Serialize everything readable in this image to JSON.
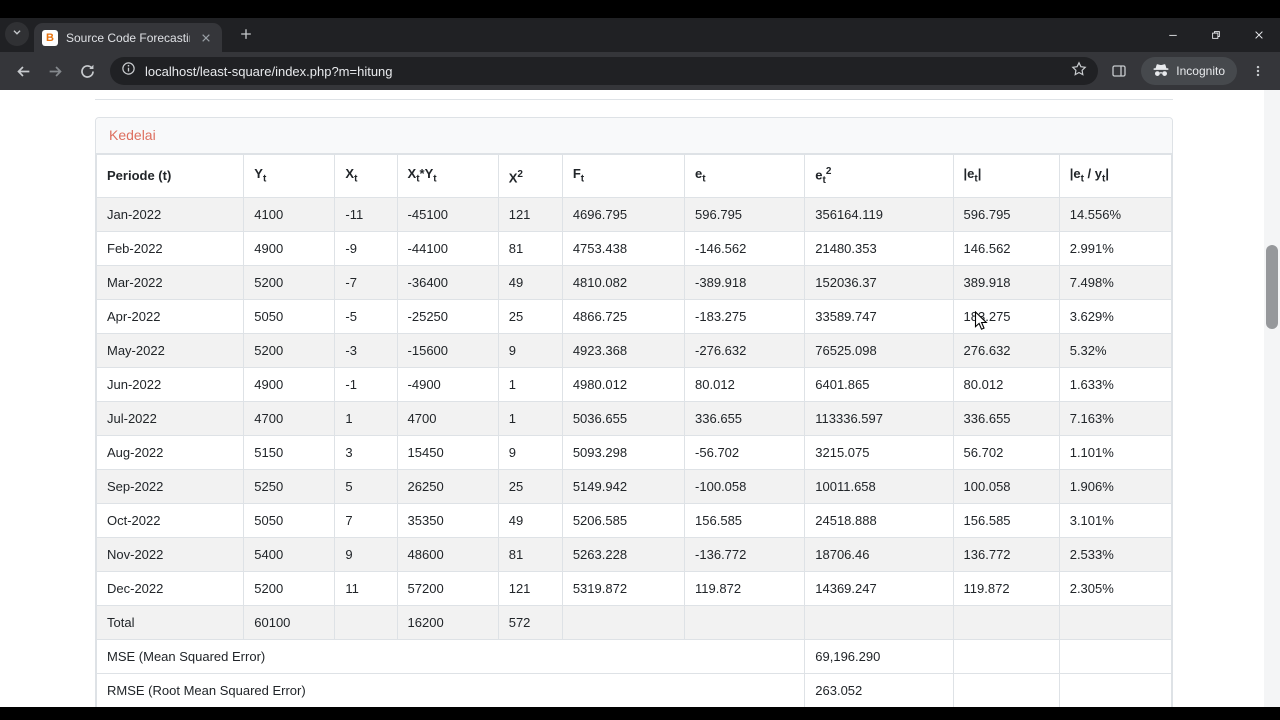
{
  "browser": {
    "tab": {
      "title": "Source Code Forecasting Least",
      "favicon_letter": "B"
    },
    "url": "localhost/least-square/index.php?m=hitung",
    "incognito_label": "Incognito"
  },
  "page": {
    "card": {
      "header_link": "Kedelai",
      "table": {
        "columns": [
          "Periode (t)",
          "Y_t",
          "X_t",
          "X_t*Y_t",
          "X^2",
          "F_t",
          "e_t",
          "e_t^2",
          "|e_t|",
          "|e_t / y_t|"
        ],
        "rows": [
          {
            "type": "data",
            "striped": true,
            "cells": [
              "Jan-2022",
              "4100",
              "-11",
              "-45100",
              "121",
              "4696.795",
              "596.795",
              "356164.119",
              "596.795",
              "14.556%"
            ]
          },
          {
            "type": "data",
            "striped": false,
            "cells": [
              "Feb-2022",
              "4900",
              "-9",
              "-44100",
              "81",
              "4753.438",
              "-146.562",
              "21480.353",
              "146.562",
              "2.991%"
            ]
          },
          {
            "type": "data",
            "striped": true,
            "cells": [
              "Mar-2022",
              "5200",
              "-7",
              "-36400",
              "49",
              "4810.082",
              "-389.918",
              "152036.37",
              "389.918",
              "7.498%"
            ]
          },
          {
            "type": "data",
            "striped": false,
            "cells": [
              "Apr-2022",
              "5050",
              "-5",
              "-25250",
              "25",
              "4866.725",
              "-183.275",
              "33589.747",
              "183.275",
              "3.629%"
            ]
          },
          {
            "type": "data",
            "striped": true,
            "cells": [
              "May-2022",
              "5200",
              "-3",
              "-15600",
              "9",
              "4923.368",
              "-276.632",
              "76525.098",
              "276.632",
              "5.32%"
            ]
          },
          {
            "type": "data",
            "striped": false,
            "cells": [
              "Jun-2022",
              "4900",
              "-1",
              "-4900",
              "1",
              "4980.012",
              "80.012",
              "6401.865",
              "80.012",
              "1.633%"
            ]
          },
          {
            "type": "data",
            "striped": true,
            "cells": [
              "Jul-2022",
              "4700",
              "1",
              "4700",
              "1",
              "5036.655",
              "336.655",
              "113336.597",
              "336.655",
              "7.163%"
            ]
          },
          {
            "type": "data",
            "striped": false,
            "cells": [
              "Aug-2022",
              "5150",
              "3",
              "15450",
              "9",
              "5093.298",
              "-56.702",
              "3215.075",
              "56.702",
              "1.101%"
            ]
          },
          {
            "type": "data",
            "striped": true,
            "cells": [
              "Sep-2022",
              "5250",
              "5",
              "26250",
              "25",
              "5149.942",
              "-100.058",
              "10011.658",
              "100.058",
              "1.906%"
            ]
          },
          {
            "type": "data",
            "striped": false,
            "cells": [
              "Oct-2022",
              "5050",
              "7",
              "35350",
              "49",
              "5206.585",
              "156.585",
              "24518.888",
              "156.585",
              "3.101%"
            ]
          },
          {
            "type": "data",
            "striped": true,
            "cells": [
              "Nov-2022",
              "5400",
              "9",
              "48600",
              "81",
              "5263.228",
              "-136.772",
              "18706.46",
              "136.772",
              "2.533%"
            ]
          },
          {
            "type": "data",
            "striped": false,
            "cells": [
              "Dec-2022",
              "5200",
              "11",
              "57200",
              "121",
              "5319.872",
              "119.872",
              "14369.247",
              "119.872",
              "2.305%"
            ]
          },
          {
            "type": "data",
            "striped": true,
            "cells": [
              "Total",
              "60100",
              "",
              "16200",
              "572",
              "",
              "",
              "",
              "",
              ""
            ]
          },
          {
            "type": "summary",
            "striped": false,
            "label": "MSE (Mean Squared Error)",
            "value": "69,196.290"
          },
          {
            "type": "summary",
            "striped": false,
            "label": "RMSE (Root Mean Squared Error)",
            "value": "263.052"
          },
          {
            "type": "partial",
            "striped": true
          }
        ]
      }
    }
  }
}
